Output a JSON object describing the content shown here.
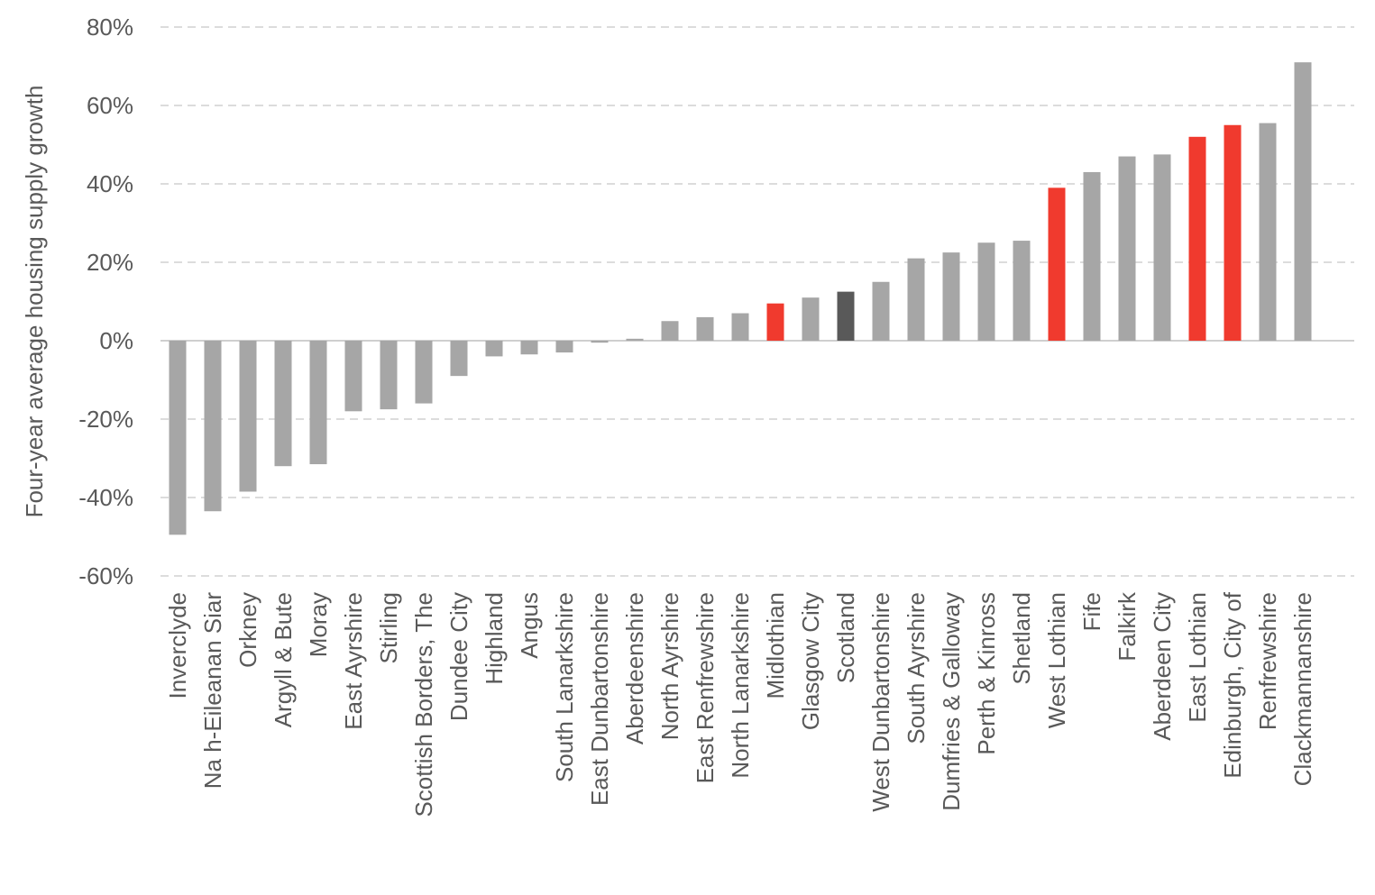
{
  "chart_data": {
    "type": "bar",
    "title": "",
    "xlabel": "",
    "ylabel": "Four-year average housing supply growth",
    "ylim": [
      -60,
      80
    ],
    "yticks": [
      -60,
      -40,
      -20,
      0,
      20,
      40,
      60,
      80
    ],
    "ytick_labels": [
      "-60%",
      "-40%",
      "-20%",
      "0%",
      "20%",
      "40%",
      "60%",
      "80%"
    ],
    "grid": "horizontal dashed",
    "legend": "none",
    "categories": [
      "Inverclyde",
      "Na h-Eileanan Siar",
      "Orkney",
      "Argyll & Bute",
      "Moray",
      "East Ayrshire",
      "Stirling",
      "Scottish Borders, The",
      "Dundee City",
      "Highland",
      "Angus",
      "South Lanarkshire",
      "East Dunbartonshire",
      "Aberdeenshire",
      "North Ayrshire",
      "East Renfrewshire",
      "North Lanarkshire",
      "Midlothian",
      "Glasgow City",
      "Scotland",
      "West Dunbartonshire",
      "South Ayrshire",
      "Dumfries & Galloway",
      "Perth & Kinross",
      "Shetland",
      "West Lothian",
      "Fife",
      "Falkirk",
      "Aberdeen City",
      "East Lothian",
      "Edinburgh, City of",
      "Renfrewshire",
      "Clackmannanshire"
    ],
    "values": [
      -49.5,
      -43.5,
      -38.5,
      -32,
      -31.5,
      -18,
      -17.5,
      -16,
      -9,
      -4,
      -3.5,
      -3,
      -0.5,
      0.5,
      5,
      6,
      7,
      9.5,
      11,
      12.5,
      15,
      21,
      22.5,
      25,
      25.5,
      39,
      43,
      47,
      47.5,
      52,
      55,
      55.5,
      71
    ],
    "highlight": [
      "Midlothian",
      "West Lothian",
      "East Lothian",
      "Edinburgh, City of"
    ],
    "benchmark": [
      "Scotland"
    ],
    "colors": {
      "default": "#a6a6a6",
      "highlight": "#f03a2e",
      "benchmark": "#595959"
    }
  }
}
